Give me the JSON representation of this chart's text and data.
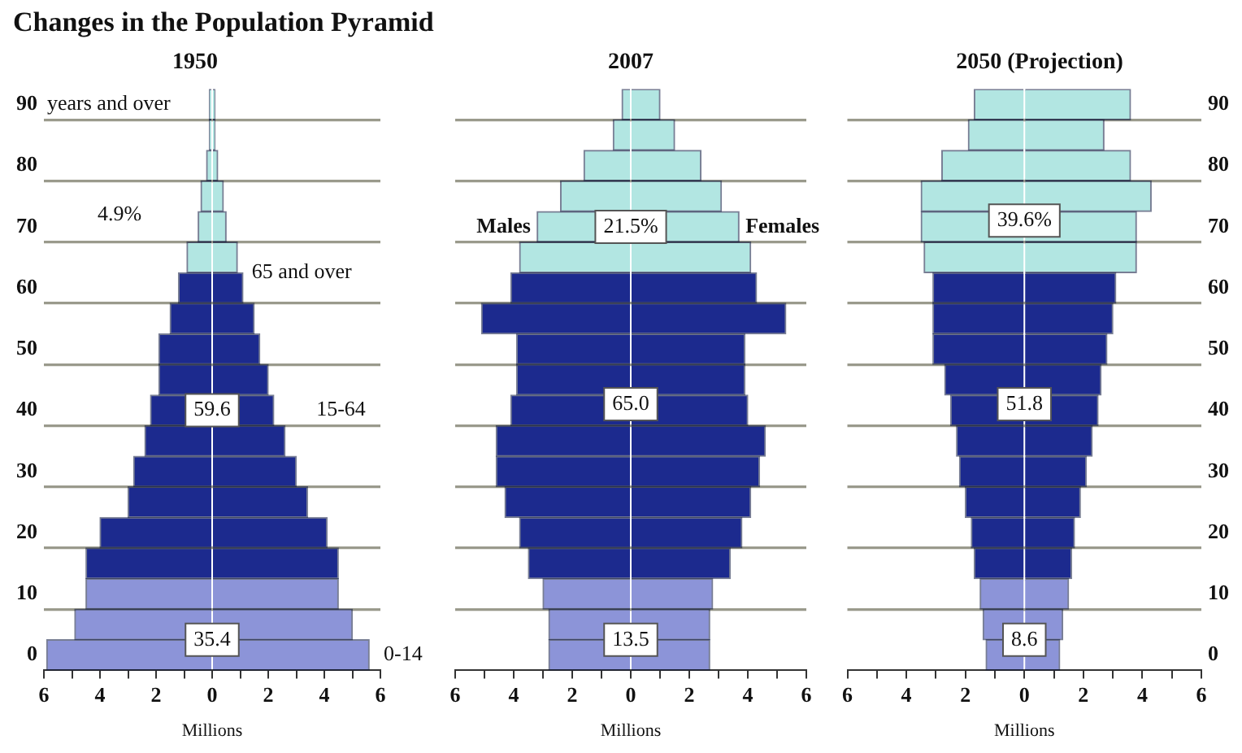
{
  "chart_data": [
    {
      "type": "bar",
      "orientation": "horizontal",
      "stacked": true,
      "title": "1950",
      "xlabel": "Millions",
      "grid": "y",
      "annotations": [
        "Changes in the Population Pyramid",
        "years and over",
        "4.9%",
        "65 and over",
        "59.6",
        "15-64",
        "35.4",
        "0-14"
      ],
      "categories": [
        "90",
        null,
        "80",
        null,
        "70",
        null,
        "60",
        null,
        "50",
        null,
        "40",
        null,
        "30",
        null,
        "20",
        null,
        "10",
        null,
        "0"
      ],
      "series": [
        {
          "colors": [
            "#b2e6e2",
            "#b2e6e2",
            "#b2e6e2",
            "#b2e6e2",
            "#b2e6e2",
            "#b2e6e2",
            "#1c2a8e",
            "#1c2a8e",
            "#1c2a8e",
            "#1c2a8e",
            "#1c2a8e",
            "#1c2a8e",
            "#1c2a8e",
            "#1c2a8e",
            "#1c2a8e",
            "#1c2a8e",
            "#8c94d8",
            "#8c94d8",
            "#8c94d8"
          ],
          "values": [
            -0.1,
            -0.1,
            -0.2,
            -0.4,
            -0.5,
            -0.9,
            -1.2,
            -1.5,
            -1.9,
            -1.9,
            -2.2,
            -2.4,
            -2.8,
            -3.0,
            -4.0,
            -4.5,
            -4.5,
            -4.9,
            -5.9
          ]
        },
        {
          "colors": [
            "#b2e6e2",
            "#b2e6e2",
            "#b2e6e2",
            "#b2e6e2",
            "#b2e6e2",
            "#b2e6e2",
            "#1c2a8e",
            "#1c2a8e",
            "#1c2a8e",
            "#1c2a8e",
            "#1c2a8e",
            "#1c2a8e",
            "#1c2a8e",
            "#1c2a8e",
            "#1c2a8e",
            "#1c2a8e",
            "#8c94d8",
            "#8c94d8",
            "#8c94d8"
          ],
          "values": [
            0.1,
            0.1,
            0.2,
            0.4,
            0.5,
            0.9,
            1.1,
            1.5,
            1.7,
            2.0,
            2.2,
            2.6,
            3.0,
            3.4,
            4.1,
            4.5,
            4.5,
            5.0,
            5.6
          ]
        }
      ],
      "xlim": [
        -6,
        6
      ],
      "xticks": [
        {
          "value": -6,
          "label": "6"
        },
        {
          "value": -5,
          "label": null
        },
        {
          "value": -4,
          "label": "4"
        },
        {
          "value": -3,
          "label": null
        },
        {
          "value": -2,
          "label": "2"
        },
        {
          "value": -1,
          "label": null
        },
        0,
        {
          "value": 1,
          "label": null
        },
        2,
        {
          "value": 3,
          "label": null
        },
        4,
        {
          "value": 5,
          "label": null
        },
        6
      ]
    },
    {
      "type": "bar",
      "orientation": "horizontal",
      "stacked": true,
      "title": "2007",
      "xlabel": "Millions",
      "grid": "y",
      "tick_labels": "x",
      "annotations": [
        "21.5%",
        "65.0",
        "13.5"
      ],
      "categories": [
        "90",
        null,
        "80",
        null,
        "70",
        null,
        "60",
        null,
        "50",
        null,
        "40",
        null,
        "30",
        null,
        "20",
        null,
        "10",
        null,
        "0"
      ],
      "series": [
        {
          "name": "Males",
          "colors": [
            "#b2e6e2",
            "#b2e6e2",
            "#b2e6e2",
            "#b2e6e2",
            "#b2e6e2",
            "#b2e6e2",
            "#1c2a8e",
            "#1c2a8e",
            "#1c2a8e",
            "#1c2a8e",
            "#1c2a8e",
            "#1c2a8e",
            "#1c2a8e",
            "#1c2a8e",
            "#1c2a8e",
            "#1c2a8e",
            "#8c94d8",
            "#8c94d8",
            "#8c94d8"
          ],
          "values": [
            -0.3,
            -0.6,
            -1.6,
            -2.4,
            -3.2,
            -3.8,
            -4.1,
            -5.1,
            -3.9,
            -3.9,
            -4.1,
            -4.6,
            -4.6,
            -4.3,
            -3.8,
            -3.5,
            -3.0,
            -2.8,
            -2.8
          ]
        },
        {
          "name": "Females",
          "colors": [
            "#b2e6e2",
            "#b2e6e2",
            "#b2e6e2",
            "#b2e6e2",
            "#b2e6e2",
            "#b2e6e2",
            "#1c2a8e",
            "#1c2a8e",
            "#1c2a8e",
            "#1c2a8e",
            "#1c2a8e",
            "#1c2a8e",
            "#1c2a8e",
            "#1c2a8e",
            "#1c2a8e",
            "#1c2a8e",
            "#8c94d8",
            "#8c94d8",
            "#8c94d8"
          ],
          "values": [
            1.0,
            1.5,
            2.4,
            3.1,
            3.7,
            4.1,
            4.3,
            5.3,
            3.9,
            3.9,
            4.0,
            4.6,
            4.4,
            4.1,
            3.8,
            3.4,
            2.8,
            2.7,
            2.7
          ]
        }
      ],
      "xlim": [
        -6,
        6
      ],
      "xticks": [
        {
          "value": -6,
          "label": "6"
        },
        {
          "value": -5,
          "label": null
        },
        {
          "value": -4,
          "label": "4"
        },
        {
          "value": -3,
          "label": null
        },
        {
          "value": -2,
          "label": "2"
        },
        {
          "value": -1,
          "label": null
        },
        0,
        {
          "value": 1,
          "label": null
        },
        2,
        {
          "value": 3,
          "label": null
        },
        4,
        {
          "value": 5,
          "label": null
        },
        6
      ]
    },
    {
      "type": "bar",
      "orientation": "horizontal",
      "stacked": true,
      "title": "2050 (Projection)",
      "xlabel": "Millions",
      "grid": "y",
      "annotations": [
        "39.6%",
        "51.8",
        "8.6"
      ],
      "categories": [
        "90",
        null,
        "80",
        null,
        "70",
        null,
        "60",
        null,
        "50",
        null,
        "40",
        null,
        "30",
        null,
        "20",
        null,
        "10",
        null,
        "0"
      ],
      "series": [
        {
          "colors": [
            "#b2e6e2",
            "#b2e6e2",
            "#b2e6e2",
            "#b2e6e2",
            "#b2e6e2",
            "#b2e6e2",
            "#1c2a8e",
            "#1c2a8e",
            "#1c2a8e",
            "#1c2a8e",
            "#1c2a8e",
            "#1c2a8e",
            "#1c2a8e",
            "#1c2a8e",
            "#1c2a8e",
            "#1c2a8e",
            "#8c94d8",
            "#8c94d8",
            "#8c94d8"
          ],
          "values": [
            -1.7,
            -1.9,
            -2.8,
            -3.5,
            -3.5,
            -3.4,
            -3.1,
            -3.1,
            -3.1,
            -2.7,
            -2.5,
            -2.3,
            -2.2,
            -2.0,
            -1.8,
            -1.7,
            -1.5,
            -1.4,
            -1.3
          ]
        },
        {
          "colors": [
            "#b2e6e2",
            "#b2e6e2",
            "#b2e6e2",
            "#b2e6e2",
            "#b2e6e2",
            "#b2e6e2",
            "#1c2a8e",
            "#1c2a8e",
            "#1c2a8e",
            "#1c2a8e",
            "#1c2a8e",
            "#1c2a8e",
            "#1c2a8e",
            "#1c2a8e",
            "#1c2a8e",
            "#1c2a8e",
            "#8c94d8",
            "#8c94d8",
            "#8c94d8"
          ],
          "values": [
            3.6,
            2.7,
            3.6,
            4.3,
            3.8,
            3.8,
            3.1,
            3.0,
            2.8,
            2.6,
            2.5,
            2.3,
            2.1,
            1.9,
            1.7,
            1.6,
            1.5,
            1.3,
            1.2
          ]
        }
      ],
      "xlim": [
        -6,
        6
      ],
      "xticks": [
        {
          "value": -6,
          "label": "6"
        },
        {
          "value": -5,
          "label": null
        },
        {
          "value": -4,
          "label": "4"
        },
        {
          "value": -3,
          "label": null
        },
        {
          "value": -2,
          "label": "2"
        },
        {
          "value": -1,
          "label": null
        },
        0,
        {
          "value": 1,
          "label": null
        },
        2,
        {
          "value": 3,
          "label": null
        },
        4,
        {
          "value": 5,
          "label": null
        },
        6
      ]
    }
  ]
}
